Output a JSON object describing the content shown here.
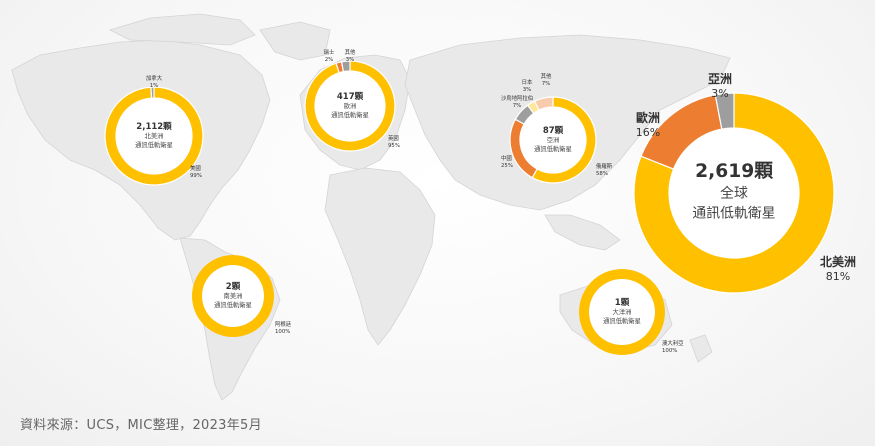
{
  "chart_data": [
    {
      "type": "pie",
      "donut": true,
      "center_text": [
        "2,112顆",
        "北美洲",
        "通訊低軌衛星"
      ],
      "slices": [
        {
          "label": "美國",
          "percent_label": "99%",
          "value": 99,
          "color": "#FFC000"
        },
        {
          "label": "加拿大",
          "percent_label": "1%",
          "value": 1,
          "color": "#9E9E9E"
        }
      ]
    },
    {
      "type": "pie",
      "donut": true,
      "center_text": [
        "417顆",
        "歐洲",
        "通訊低軌衛星"
      ],
      "slices": [
        {
          "label": "英國",
          "percent_label": "95%",
          "value": 95,
          "color": "#FFC000"
        },
        {
          "label": "瑞士",
          "percent_label": "2%",
          "value": 2,
          "color": "#ED7D31"
        },
        {
          "label": "其他",
          "percent_label": "3%",
          "value": 3,
          "color": "#9E9E9E"
        }
      ]
    },
    {
      "type": "pie",
      "donut": true,
      "center_text": [
        "87顆",
        "亞洲",
        "通訊低軌衛星"
      ],
      "slices": [
        {
          "label": "俄羅斯",
          "percent_label": "58%",
          "value": 58,
          "color": "#FFC000"
        },
        {
          "label": "中國",
          "percent_label": "25%",
          "value": 25,
          "color": "#ED7D31"
        },
        {
          "label": "沙烏地阿拉伯",
          "percent_label": "7%",
          "value": 7,
          "color": "#9E9E9E"
        },
        {
          "label": "日本",
          "percent_label": "3%",
          "value": 3,
          "color": "#FFE699"
        },
        {
          "label": "其他",
          "percent_label": "7%",
          "value": 7,
          "color": "#F8CBAD"
        }
      ]
    },
    {
      "type": "pie",
      "donut": true,
      "center_text": [
        "2顆",
        "南美洲",
        "通訊低軌衛星"
      ],
      "slices": [
        {
          "label": "阿根廷",
          "percent_label": "100%",
          "value": 100,
          "color": "#FFC000"
        }
      ]
    },
    {
      "type": "pie",
      "donut": true,
      "center_text": [
        "1顆",
        "大洋洲",
        "通訊低軌衛星"
      ],
      "slices": [
        {
          "label": "澳大利亞",
          "percent_label": "100%",
          "value": 100,
          "color": "#FFC000"
        }
      ]
    },
    {
      "type": "pie",
      "donut": true,
      "center_text": [
        "2,619顆",
        "全球",
        "通訊低軌衛星"
      ],
      "slices": [
        {
          "label": "北美洲",
          "percent_label": "81%",
          "value": 81,
          "color": "#FFC000"
        },
        {
          "label": "歐洲",
          "percent_label": "16%",
          "value": 16,
          "color": "#ED7D31"
        },
        {
          "label": "亞洲",
          "percent_label": "3%",
          "value": 3,
          "color": "#9E9E9E"
        }
      ]
    }
  ],
  "source": "資料來源：UCS，MIC整理，2023年5月"
}
